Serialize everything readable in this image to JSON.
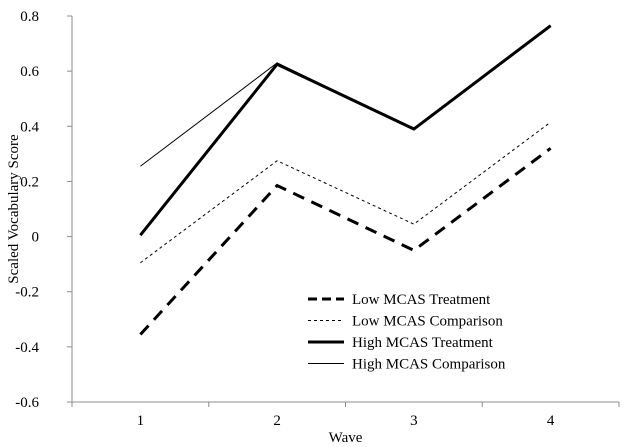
{
  "chart_data": {
    "type": "line",
    "title": "",
    "xlabel": "Wave",
    "ylabel": "Scaled Vocabulary Score",
    "x": [
      1,
      2,
      3,
      4
    ],
    "x_tick_labels": [
      "1",
      "2",
      "3",
      "4"
    ],
    "ylim": [
      -0.6,
      0.8
    ],
    "y_ticks": [
      -0.6,
      -0.4,
      -0.2,
      0,
      0.2,
      0.4,
      0.6,
      0.8
    ],
    "y_tick_labels": [
      "-0.6",
      "-0.4",
      "-0.2",
      "0",
      "0.2",
      "0.4",
      "0.6",
      "0.8"
    ],
    "grid": false,
    "legend_position": "bottom-right",
    "series": [
      {
        "name": "Low MCAS Treatment",
        "values": [
          -0.355,
          0.185,
          -0.05,
          0.32
        ],
        "line_style": "dashed",
        "line_weight": "heavy",
        "color": "#000000"
      },
      {
        "name": "Low MCAS Comparison",
        "values": [
          -0.095,
          0.275,
          0.045,
          0.415
        ],
        "line_style": "dotted",
        "line_weight": "thin",
        "color": "#000000"
      },
      {
        "name": "High MCAS Treatment",
        "values": [
          0.005,
          0.625,
          0.39,
          0.765
        ],
        "line_style": "solid",
        "line_weight": "heavy",
        "color": "#000000"
      },
      {
        "name": "High MCAS Comparison",
        "values": [
          0.255,
          0.63,
          0.39,
          0.765
        ],
        "line_style": "solid",
        "line_weight": "thin",
        "color": "#000000"
      }
    ]
  }
}
